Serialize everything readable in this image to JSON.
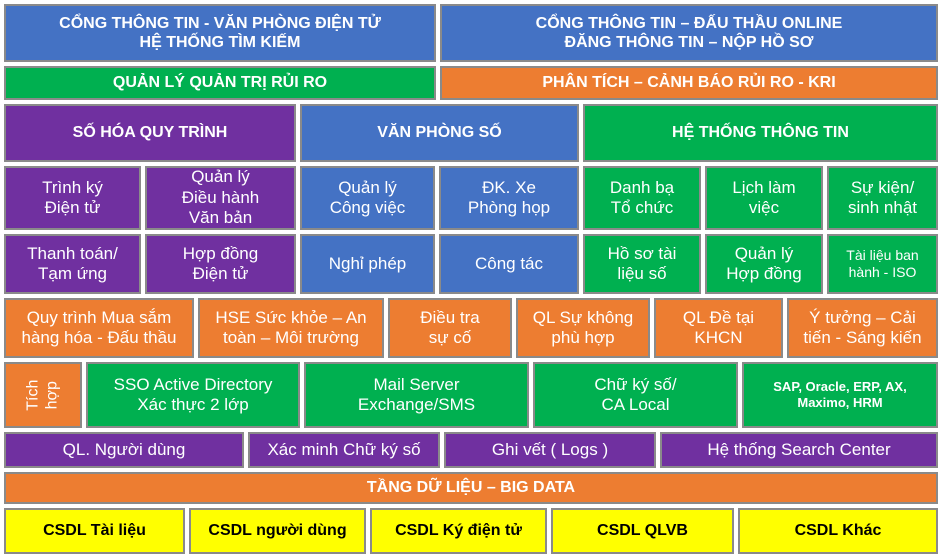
{
  "portals": {
    "office": "CỔNG THÔNG TIN - VĂN PHÒNG ĐIỆN TỬ\nHỆ THỐNG TÌM KIẾM",
    "bidding": "CỔNG THÔNG TIN – ĐẤU THẦU ONLINE\nĐĂNG THÔNG TIN – NỘP HỒ SƠ"
  },
  "risk": {
    "management": "QUẢN LÝ QUẢN TRỊ RỦI RO",
    "analysis": "PHÂN TÍCH – CẢNH BÁO RỦI RO - KRI"
  },
  "sections": {
    "digitize": "SỐ HÓA QUY TRÌNH",
    "digital_office": "VĂN PHÒNG SỐ",
    "info_system": "HỆ THỐNG THÔNG TIN"
  },
  "modules": {
    "signing": "Trình ký\nĐiện tử",
    "document_mgmt": "Quản lý\nĐiều hành\nVăn bản",
    "work_mgmt": "Quản lý\nCông việc",
    "vehicle_room": "ĐK. Xe\nPhòng họp",
    "directory": "Danh bạ\nTổ chức",
    "calendar": "Lịch làm\nviệc",
    "events": "Sự kiện/\nsinh nhật",
    "payment": "Thanh toán/\nTạm ứng",
    "contract": "Hợp đồng\nĐiện tử",
    "leave": "Nghỉ phép",
    "business_trip": "Công tác",
    "digital_records": "Hồ sơ tài\nliệu số",
    "contract_mgmt": "Quản lý\nHợp đồng",
    "iso_docs": "Tài liệu ban\nhành - ISO"
  },
  "processes": {
    "procurement": "Quy trình Mua sắm\nhàng hóa - Đấu thầu",
    "hse": "HSE Sức khỏe – An\ntoàn – Môi trường",
    "incident": "Điều tra\nsự cố",
    "nonconformity": "QL Sự không\nphù hợp",
    "research": "QL Đề tại\nKHCN",
    "ideas": "Ý tưởng – Cải\ntiến - Sáng kiến"
  },
  "integration": {
    "label": "Tích\nhợp",
    "sso": "SSO Active Directory\nXác thực 2 lớp",
    "mail": "Mail Server\nExchange/SMS",
    "signature": "Chữ ký số/\nCA Local",
    "erp": "SAP, Oracle, ERP, AX,\nMaximo, HRM"
  },
  "services": {
    "users": "QL. Người dùng",
    "verify_signature": "Xác minh Chữ ký số",
    "logs": "Ghi vết ( Logs )",
    "search_center": "Hệ thống Search Center"
  },
  "data_layer": "TẦNG DỮ LIỆU – BIG DATA",
  "databases": {
    "documents": "CSDL Tài liệu",
    "users": "CSDL người dùng",
    "esign": "CSDL Ký điện tử",
    "qlvb": "CSDL QLVB",
    "other": "CSDL Khác"
  },
  "colors": {
    "blue": "#4472c4",
    "green": "#00b050",
    "orange": "#ed7d31",
    "purple": "#7030a0",
    "yellow": "#ffff00"
  }
}
